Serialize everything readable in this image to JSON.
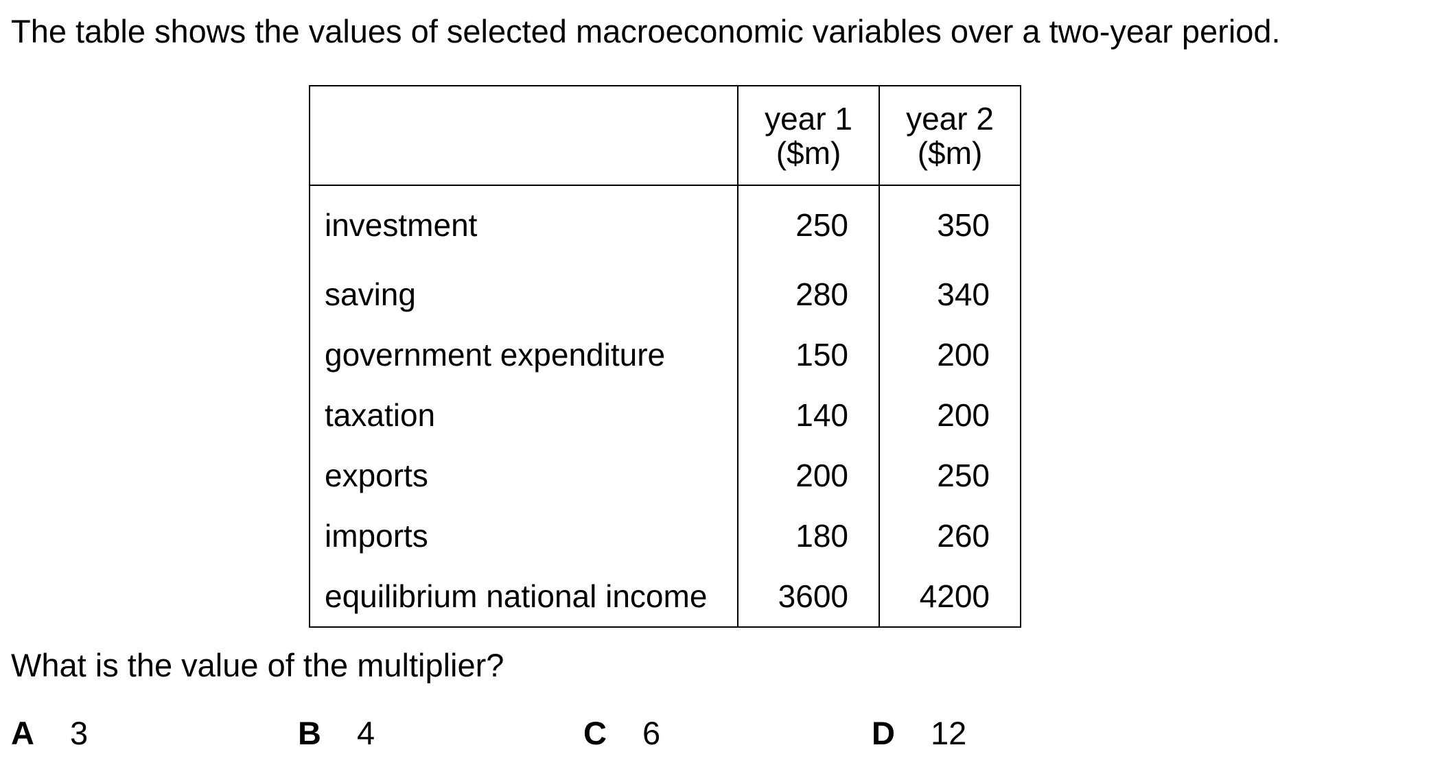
{
  "intro": "The table shows the values of selected macroeconomic variables over a two-year period.",
  "table": {
    "header": {
      "label": "",
      "year1_line1": "year 1",
      "year1_line2": "($m)",
      "year2_line1": "year 2",
      "year2_line2": "($m)"
    },
    "rows": [
      {
        "label": "investment",
        "year1": "250",
        "year2": "350"
      },
      {
        "label": "saving",
        "year1": "280",
        "year2": "340"
      },
      {
        "label": "government expenditure",
        "year1": "150",
        "year2": "200"
      },
      {
        "label": "taxation",
        "year1": "140",
        "year2": "200"
      },
      {
        "label": "exports",
        "year1": "200",
        "year2": "250"
      },
      {
        "label": "imports",
        "year1": "180",
        "year2": "260"
      },
      {
        "label": "equilibrium national income",
        "year1": "3600",
        "year2": "4200"
      }
    ]
  },
  "question": "What is the value of the multiplier?",
  "options": [
    {
      "letter": "A",
      "value": "3"
    },
    {
      "letter": "B",
      "value": "4"
    },
    {
      "letter": "C",
      "value": "6"
    },
    {
      "letter": "D",
      "value": "12"
    }
  ]
}
